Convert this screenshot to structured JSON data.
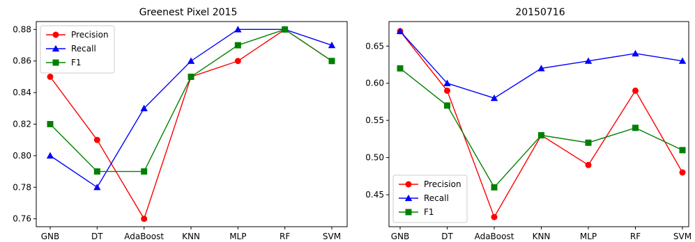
{
  "chart_data": [
    {
      "type": "line",
      "title": "Greenest Pixel 2015",
      "categories": [
        "GNB",
        "DT",
        "AdaBoost",
        "KNN",
        "MLP",
        "RF",
        "SVM"
      ],
      "ylim": [
        0.755,
        0.885
      ],
      "yticks": [
        "0.76",
        "0.78",
        "0.80",
        "0.82",
        "0.84",
        "0.86",
        "0.88"
      ],
      "grid": false,
      "legend_position": "top-left",
      "series": [
        {
          "name": "Precision",
          "color": "#ff0000",
          "marker": "circle",
          "values": [
            0.85,
            0.81,
            0.76,
            0.85,
            0.86,
            0.88,
            0.86
          ]
        },
        {
          "name": "Recall",
          "color": "#0000ff",
          "marker": "triangle",
          "values": [
            0.8,
            0.78,
            0.83,
            0.86,
            0.88,
            0.88,
            0.87
          ]
        },
        {
          "name": "F1",
          "color": "#008000",
          "marker": "square",
          "values": [
            0.82,
            0.79,
            0.79,
            0.85,
            0.87,
            0.88,
            0.86
          ]
        }
      ]
    },
    {
      "type": "line",
      "title": "20150716",
      "categories": [
        "GNB",
        "DT",
        "AdaBoost",
        "KNN",
        "MLP",
        "RF",
        "SVM"
      ],
      "ylim": [
        0.407,
        0.683
      ],
      "yticks": [
        "0.45",
        "0.50",
        "0.55",
        "0.60",
        "0.65"
      ],
      "grid": false,
      "legend_position": "bottom-left",
      "series": [
        {
          "name": "Precision",
          "color": "#ff0000",
          "marker": "circle",
          "values": [
            0.67,
            0.59,
            0.42,
            0.53,
            0.49,
            0.59,
            0.48
          ]
        },
        {
          "name": "Recall",
          "color": "#0000ff",
          "marker": "triangle",
          "values": [
            0.67,
            0.6,
            0.58,
            0.62,
            0.63,
            0.64,
            0.63
          ]
        },
        {
          "name": "F1",
          "color": "#008000",
          "marker": "square",
          "values": [
            0.62,
            0.57,
            0.46,
            0.53,
            0.52,
            0.54,
            0.51
          ]
        }
      ]
    }
  ]
}
